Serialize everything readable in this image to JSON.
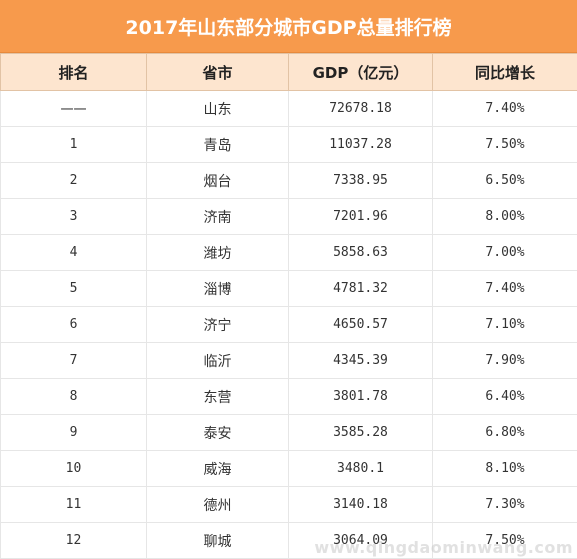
{
  "title": "2017年山东部分城市GDP总量排行榜",
  "headers": [
    "排名",
    "省市",
    "GDP（亿元）",
    "同比增长"
  ],
  "rows": [
    {
      "rank": "一一",
      "city": "山东",
      "gdp": "72678.18",
      "growth": "7.40%"
    },
    {
      "rank": "1",
      "city": "青岛",
      "gdp": "11037.28",
      "growth": "7.50%"
    },
    {
      "rank": "2",
      "city": "烟台",
      "gdp": "7338.95",
      "growth": "6.50%"
    },
    {
      "rank": "3",
      "city": "济南",
      "gdp": "7201.96",
      "growth": "8.00%"
    },
    {
      "rank": "4",
      "city": "潍坊",
      "gdp": "5858.63",
      "growth": "7.00%"
    },
    {
      "rank": "5",
      "city": "淄博",
      "gdp": "4781.32",
      "growth": "7.40%"
    },
    {
      "rank": "6",
      "city": "济宁",
      "gdp": "4650.57",
      "growth": "7.10%"
    },
    {
      "rank": "7",
      "city": "临沂",
      "gdp": "4345.39",
      "growth": "7.90%"
    },
    {
      "rank": "8",
      "city": "东营",
      "gdp": "3801.78",
      "growth": "6.40%"
    },
    {
      "rank": "9",
      "city": "泰安",
      "gdp": "3585.28",
      "growth": "6.80%"
    },
    {
      "rank": "10",
      "city": "威海",
      "gdp": "3480.1",
      "growth": "8.10%"
    },
    {
      "rank": "11",
      "city": "德州",
      "gdp": "3140.18",
      "growth": "7.30%"
    },
    {
      "rank": "12",
      "city": "聊城",
      "gdp": "3064.09",
      "growth": "7.50%"
    }
  ],
  "watermark": "www.qingdaominwang.com"
}
